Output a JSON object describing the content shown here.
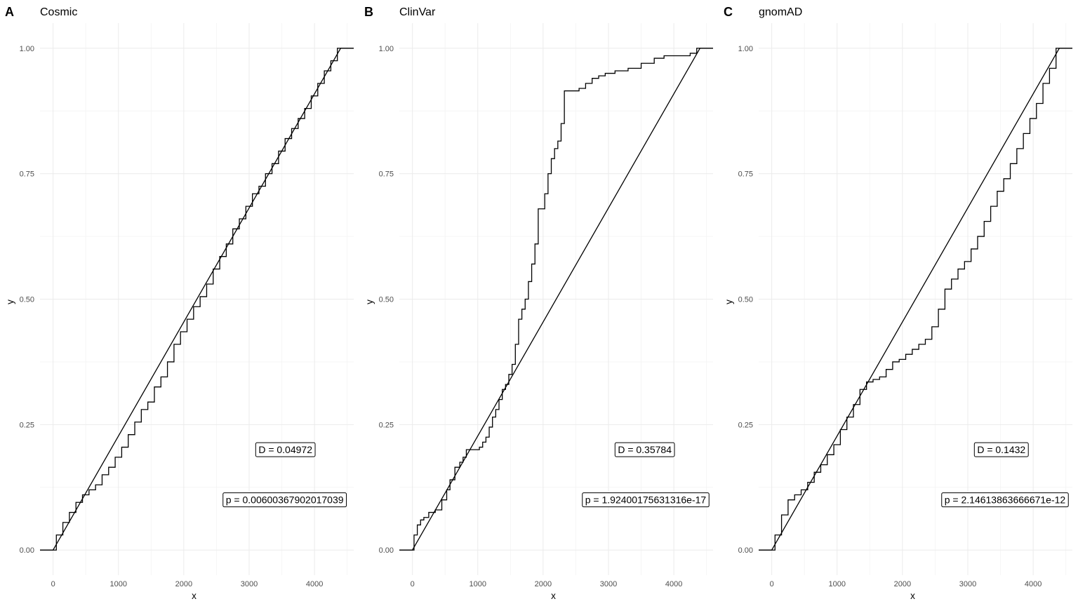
{
  "chart_data": [
    {
      "tag": "A",
      "title": "Cosmic",
      "type": "line",
      "xlabel": "x",
      "ylabel": "y",
      "xlim": [
        -200,
        4600
      ],
      "ylim": [
        -0.05,
        1.05
      ],
      "xticks": [
        0,
        1000,
        2000,
        3000,
        4000
      ],
      "xtick_labels": [
        "0",
        "1000",
        "2000",
        "3000",
        "4000"
      ],
      "yticks": [
        0,
        0.25,
        0.5,
        0.75,
        1
      ],
      "ytick_labels": [
        "0.00",
        "0.25",
        "0.50",
        "0.75",
        "1.00"
      ],
      "grid": true,
      "reference_cdf": {
        "x": [
          -200,
          0,
          4400,
          4600
        ],
        "y": [
          0,
          0,
          1,
          1
        ]
      },
      "empirical_cdf": {
        "x": [
          -200,
          0,
          100,
          200,
          300,
          400,
          500,
          600,
          700,
          800,
          900,
          1000,
          1100,
          1200,
          1300,
          1400,
          1500,
          1600,
          1700,
          1800,
          1900,
          2000,
          2100,
          2200,
          2300,
          2400,
          2500,
          2600,
          2700,
          2800,
          2900,
          3000,
          3100,
          3200,
          3300,
          3400,
          3500,
          3600,
          3700,
          3800,
          3900,
          4000,
          4100,
          4200,
          4300,
          4400,
          4600
        ],
        "y": [
          0,
          0,
          0.03,
          0.055,
          0.075,
          0.095,
          0.11,
          0.12,
          0.13,
          0.15,
          0.165,
          0.185,
          0.205,
          0.23,
          0.255,
          0.28,
          0.295,
          0.325,
          0.345,
          0.375,
          0.41,
          0.435,
          0.46,
          0.485,
          0.505,
          0.53,
          0.56,
          0.585,
          0.61,
          0.64,
          0.66,
          0.685,
          0.71,
          0.725,
          0.75,
          0.77,
          0.795,
          0.82,
          0.84,
          0.86,
          0.88,
          0.905,
          0.93,
          0.955,
          0.975,
          1,
          1
        ]
      },
      "annotations": [
        {
          "text": "D = 0.04972",
          "x": 3100,
          "y": 0.2
        },
        {
          "text": "p = 0.00600367902017039",
          "x": 2600,
          "y": 0.1
        }
      ]
    },
    {
      "tag": "B",
      "title": "ClinVar",
      "type": "line",
      "xlabel": "x",
      "ylabel": "y",
      "xlim": [
        -200,
        4600
      ],
      "ylim": [
        -0.05,
        1.05
      ],
      "xticks": [
        0,
        1000,
        2000,
        3000,
        4000
      ],
      "xtick_labels": [
        "0",
        "1000",
        "2000",
        "3000",
        "4000"
      ],
      "yticks": [
        0,
        0.25,
        0.5,
        0.75,
        1
      ],
      "ytick_labels": [
        "0.00",
        "0.25",
        "0.50",
        "0.75",
        "1.00"
      ],
      "grid": true,
      "reference_cdf": {
        "x": [
          -200,
          0,
          4400,
          4600
        ],
        "y": [
          0,
          0,
          1,
          1
        ]
      },
      "empirical_cdf": {
        "x": [
          -200,
          0,
          50,
          100,
          150,
          200,
          300,
          400,
          500,
          550,
          600,
          700,
          750,
          800,
          850,
          900,
          1000,
          1050,
          1100,
          1150,
          1200,
          1250,
          1300,
          1350,
          1400,
          1450,
          1500,
          1550,
          1600,
          1650,
          1700,
          1750,
          1800,
          1850,
          1900,
          1950,
          2000,
          2050,
          2100,
          2150,
          2200,
          2250,
          2300,
          2350,
          2500,
          2600,
          2700,
          2800,
          2900,
          3000,
          3200,
          3400,
          3600,
          3800,
          3900,
          4000,
          4200,
          4300,
          4400,
          4600
        ],
        "y": [
          0,
          0,
          0.03,
          0.05,
          0.06,
          0.065,
          0.075,
          0.08,
          0.1,
          0.12,
          0.14,
          0.165,
          0.175,
          0.185,
          0.2,
          0.2,
          0.2,
          0.205,
          0.215,
          0.225,
          0.245,
          0.265,
          0.28,
          0.3,
          0.32,
          0.33,
          0.35,
          0.37,
          0.41,
          0.46,
          0.48,
          0.5,
          0.535,
          0.57,
          0.61,
          0.68,
          0.68,
          0.71,
          0.75,
          0.78,
          0.8,
          0.815,
          0.85,
          0.915,
          0.915,
          0.92,
          0.93,
          0.94,
          0.945,
          0.95,
          0.955,
          0.96,
          0.97,
          0.98,
          0.985,
          0.985,
          0.985,
          0.99,
          1,
          1
        ]
      },
      "annotations": [
        {
          "text": "D = 0.35784",
          "x": 3100,
          "y": 0.2
        },
        {
          "text": "p = 1.92400175631316e-17",
          "x": 2600,
          "y": 0.1
        }
      ]
    },
    {
      "tag": "C",
      "title": "gnomAD",
      "type": "line",
      "xlabel": "x",
      "ylabel": "y",
      "xlim": [
        -200,
        4600
      ],
      "ylim": [
        -0.05,
        1.05
      ],
      "xticks": [
        0,
        1000,
        2000,
        3000,
        4000
      ],
      "xtick_labels": [
        "0",
        "1000",
        "2000",
        "3000",
        "4000"
      ],
      "yticks": [
        0,
        0.25,
        0.5,
        0.75,
        1
      ],
      "ytick_labels": [
        "0.00",
        "0.25",
        "0.50",
        "0.75",
        "1.00"
      ],
      "grid": true,
      "reference_cdf": {
        "x": [
          -200,
          0,
          4400,
          4600
        ],
        "y": [
          0,
          0,
          1,
          1
        ]
      },
      "empirical_cdf": {
        "x": [
          -200,
          0,
          100,
          200,
          300,
          400,
          500,
          600,
          700,
          800,
          900,
          1000,
          1100,
          1200,
          1300,
          1400,
          1500,
          1600,
          1700,
          1800,
          1900,
          2000,
          2100,
          2200,
          2300,
          2400,
          2500,
          2600,
          2700,
          2800,
          2900,
          3000,
          3100,
          3200,
          3300,
          3400,
          3500,
          3600,
          3700,
          3800,
          3900,
          4000,
          4100,
          4200,
          4300,
          4400,
          4600
        ],
        "y": [
          0,
          0,
          0.03,
          0.07,
          0.1,
          0.11,
          0.12,
          0.135,
          0.155,
          0.17,
          0.19,
          0.21,
          0.24,
          0.265,
          0.29,
          0.32,
          0.335,
          0.34,
          0.345,
          0.36,
          0.375,
          0.38,
          0.39,
          0.4,
          0.41,
          0.42,
          0.445,
          0.48,
          0.52,
          0.54,
          0.56,
          0.575,
          0.6,
          0.625,
          0.655,
          0.685,
          0.715,
          0.74,
          0.77,
          0.8,
          0.83,
          0.86,
          0.89,
          0.93,
          0.96,
          1,
          1
        ]
      },
      "annotations": [
        {
          "text": "D = 0.1432",
          "x": 3100,
          "y": 0.2
        },
        {
          "text": "p = 2.14613863666671e-12",
          "x": 2600,
          "y": 0.1
        }
      ]
    }
  ]
}
